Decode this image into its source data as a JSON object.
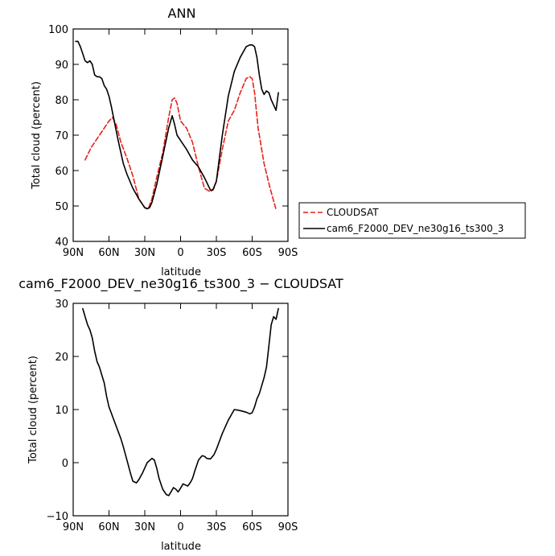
{
  "chart_data": [
    {
      "type": "line",
      "title": "ANN",
      "xlabel": "latitude",
      "ylabel": "Total cloud (percent)",
      "xlim": [
        90,
        -90
      ],
      "ylim": [
        40,
        100
      ],
      "x_ticks": [
        90,
        60,
        30,
        0,
        -30,
        -60,
        -90
      ],
      "x_tick_labels": [
        "90N",
        "60N",
        "30N",
        "0",
        "30S",
        "60S",
        "90S"
      ],
      "y_ticks": [
        40,
        50,
        60,
        70,
        80,
        90,
        100
      ],
      "y_tick_labels": [
        "40",
        "50",
        "60",
        "70",
        "80",
        "90",
        "100"
      ],
      "legend": {
        "placement": "right",
        "entries": [
          "CLOUDSAT",
          "cam6_F2000_DEV_ne30g16_ts300_3"
        ]
      },
      "series": [
        {
          "name": "CLOUDSAT",
          "color": "#e8211a",
          "dash": "dashed",
          "x": [
            80,
            75,
            70,
            65,
            60,
            57,
            54,
            50,
            45,
            40,
            35,
            30,
            27,
            24,
            20,
            15,
            10,
            7,
            5,
            3,
            0,
            -5,
            -10,
            -15,
            -20,
            -25,
            -28,
            -30,
            -35,
            -40,
            -45,
            -50,
            -55,
            -58,
            -60,
            -62,
            -65,
            -70,
            -75,
            -80
          ],
          "y": [
            63,
            66.5,
            69,
            71.5,
            74,
            75,
            73,
            68,
            63.5,
            58.5,
            52,
            49.5,
            49.3,
            52,
            58,
            65,
            75,
            80,
            80.5,
            79,
            74,
            72,
            68,
            61,
            55,
            54,
            55,
            57,
            66,
            74,
            77,
            82,
            86,
            86.5,
            86,
            82,
            72,
            62,
            55,
            49
          ]
        },
        {
          "name": "cam6_F2000_DEV_ne30g16_ts300_3",
          "color": "#000000",
          "dash": "solid",
          "x": [
            88,
            86,
            84,
            82,
            80,
            78,
            76,
            74,
            72,
            70,
            68,
            66,
            64,
            62,
            60,
            58,
            55,
            52,
            48,
            45,
            40,
            35,
            30,
            28,
            26,
            24,
            20,
            15,
            10,
            7,
            5,
            3,
            0,
            -5,
            -10,
            -15,
            -20,
            -25,
            -27,
            -30,
            -35,
            -40,
            -45,
            -50,
            -55,
            -58,
            -60,
            -62,
            -64,
            -66,
            -68,
            -70,
            -72,
            -74,
            -76,
            -78,
            -80,
            -82
          ],
          "y": [
            96.5,
            96.5,
            95,
            93,
            91,
            90.5,
            91,
            90,
            87,
            86.5,
            86.5,
            86,
            84,
            83,
            81,
            78,
            73,
            68,
            62,
            59,
            55,
            52,
            49.5,
            49.2,
            49.5,
            51,
            56,
            64,
            72,
            75.5,
            73,
            70,
            68.5,
            66,
            63,
            61,
            58,
            54.5,
            54.5,
            57,
            70,
            81,
            88,
            92,
            95,
            95.5,
            95.5,
            95,
            92,
            87,
            83,
            81.5,
            82.5,
            82,
            80,
            78.5,
            77,
            82
          ]
        }
      ]
    },
    {
      "type": "line",
      "title": "cam6_F2000_DEV_ne30g16_ts300_3 − CLOUDSAT",
      "xlabel": "latitude",
      "ylabel": "Total cloud (percent)",
      "xlim": [
        90,
        -90
      ],
      "ylim": [
        -10,
        30
      ],
      "x_ticks": [
        90,
        60,
        30,
        0,
        -30,
        -60,
        -90
      ],
      "x_tick_labels": [
        "90N",
        "60N",
        "30N",
        "0",
        "30S",
        "60S",
        "90S"
      ],
      "y_ticks": [
        -10,
        0,
        10,
        20,
        30
      ],
      "y_tick_labels": [
        "−10",
        "0",
        "10",
        "20",
        "30"
      ],
      "series": [
        {
          "color": "#000000",
          "dash": "solid",
          "x": [
            82,
            80,
            78,
            76,
            74,
            72,
            70,
            68,
            66,
            64,
            62,
            60,
            55,
            50,
            48,
            45,
            42,
            40,
            37,
            35,
            32,
            30,
            28,
            24,
            22,
            20,
            18,
            15,
            12,
            10,
            8,
            6,
            4,
            2,
            0,
            -2,
            -4,
            -6,
            -8,
            -10,
            -12,
            -15,
            -18,
            -20,
            -22,
            -25,
            -28,
            -30,
            -35,
            -40,
            -45,
            -50,
            -55,
            -58,
            -60,
            -62,
            -64,
            -66,
            -68,
            -70,
            -72,
            -74,
            -76,
            -78,
            -80,
            -82
          ],
          "y": [
            29,
            27.5,
            26,
            25,
            23.5,
            21,
            19,
            18,
            16.5,
            15,
            12.5,
            10.5,
            7.5,
            4.5,
            3,
            0.5,
            -2,
            -3.5,
            -3.8,
            -3.2,
            -2,
            -1,
            0,
            0.8,
            0.5,
            -1,
            -3,
            -5,
            -6,
            -6.2,
            -5.5,
            -4.7,
            -5,
            -5.5,
            -4.8,
            -4,
            -4.2,
            -4.4,
            -3.8,
            -3,
            -1.5,
            0.5,
            1.3,
            1.2,
            0.8,
            0.7,
            1.5,
            2.5,
            5.5,
            8,
            10,
            9.8,
            9.5,
            9.2,
            9.4,
            10.5,
            12,
            13,
            14.5,
            16,
            18,
            22,
            26,
            27.5,
            27,
            29
          ]
        }
      ]
    }
  ]
}
